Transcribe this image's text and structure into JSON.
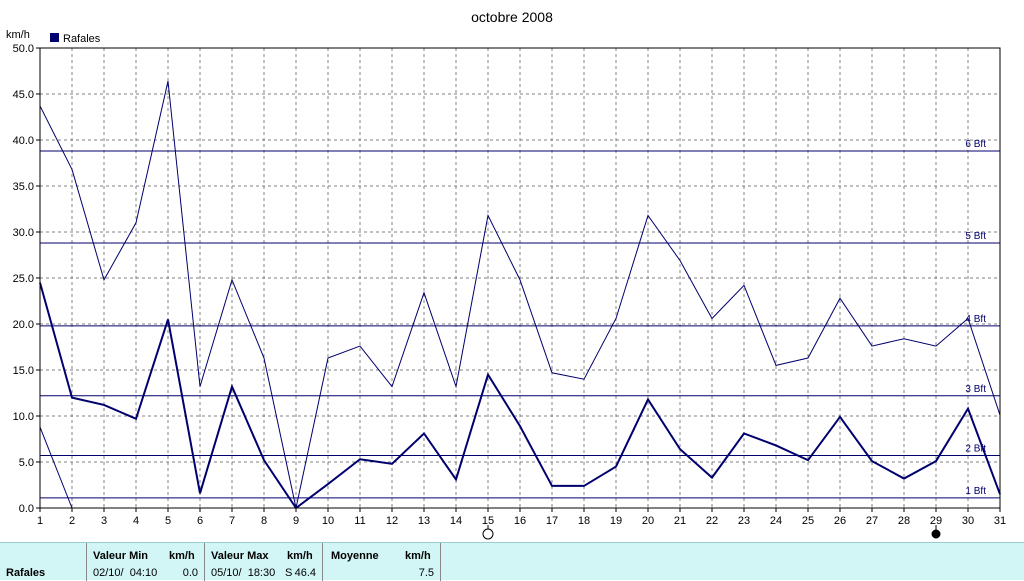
{
  "chart_data": {
    "type": "line",
    "title": "octobre 2008",
    "ylabel": "km/h",
    "xlabel": "",
    "x": [
      1,
      2,
      3,
      4,
      5,
      6,
      7,
      8,
      9,
      10,
      11,
      12,
      13,
      14,
      15,
      16,
      17,
      18,
      19,
      20,
      21,
      22,
      23,
      24,
      25,
      26,
      27,
      28,
      29,
      30,
      31
    ],
    "xlim": [
      1,
      31
    ],
    "ylim": [
      0,
      50
    ],
    "y_ticks": [
      "0.0",
      "5.0",
      "10.0",
      "15.0",
      "20.0",
      "25.0",
      "30.0",
      "35.0",
      "40.0",
      "45.0",
      "50.0"
    ],
    "grid": true,
    "legend": [
      {
        "label": "Rafales",
        "color": "#00006e"
      }
    ],
    "legend_position": "top-left",
    "series": [
      {
        "name": "Rafales",
        "color": "#00006e",
        "values": [
          24.5,
          12.0,
          11.2,
          9.7,
          20.5,
          1.6,
          13.2,
          5.2,
          0.0,
          2.6,
          5.3,
          4.8,
          8.1,
          3.1,
          14.5,
          8.9,
          2.4,
          2.4,
          4.5,
          11.8,
          6.4,
          3.3,
          8.1,
          6.8,
          5.2,
          9.9,
          5.1,
          3.2,
          5.1,
          10.8,
          1.5
        ]
      },
      {
        "color": "#00006e",
        "values": [
          43.7,
          36.8,
          24.8,
          31.0,
          46.4,
          13.2,
          24.8,
          16.3,
          0.0,
          16.3,
          17.6,
          13.2,
          23.4,
          13.2,
          31.8,
          24.8,
          14.7,
          14.0,
          20.6,
          31.8,
          26.9,
          20.6,
          24.2,
          15.5,
          16.3,
          22.8,
          17.6,
          18.4,
          17.6,
          20.6,
          10.1
        ]
      },
      {
        "color": "#00006e",
        "values": [
          8.8,
          0.0
        ],
        "x": [
          1,
          2
        ]
      }
    ],
    "reference_lines": [
      {
        "label": "1 Bft",
        "value": 1.1
      },
      {
        "label": "2 Bft",
        "value": 5.7
      },
      {
        "label": "3 Bft",
        "value": 12.2
      },
      {
        "label": "4 Bft",
        "value": 19.8
      },
      {
        "label": "5 Bft",
        "value": 28.8
      },
      {
        "label": "6 Bft",
        "value": 38.8
      }
    ],
    "moon_phases": [
      {
        "day": 15,
        "phase": "full"
      },
      {
        "day": 29,
        "phase": "new"
      }
    ]
  },
  "stats": {
    "row_label": "Rafales",
    "min_header": "Valeur Min",
    "min_unit": "km/h",
    "min_date": "02/10/  04:10",
    "min_value": "0.0",
    "max_header": "Valeur Max",
    "max_unit": "km/h",
    "max_date": "05/10/  18:30",
    "max_dir": "S",
    "max_value": "46.4",
    "avg_header": "Moyenne",
    "avg_unit": "km/h",
    "avg_value": "7.5"
  }
}
